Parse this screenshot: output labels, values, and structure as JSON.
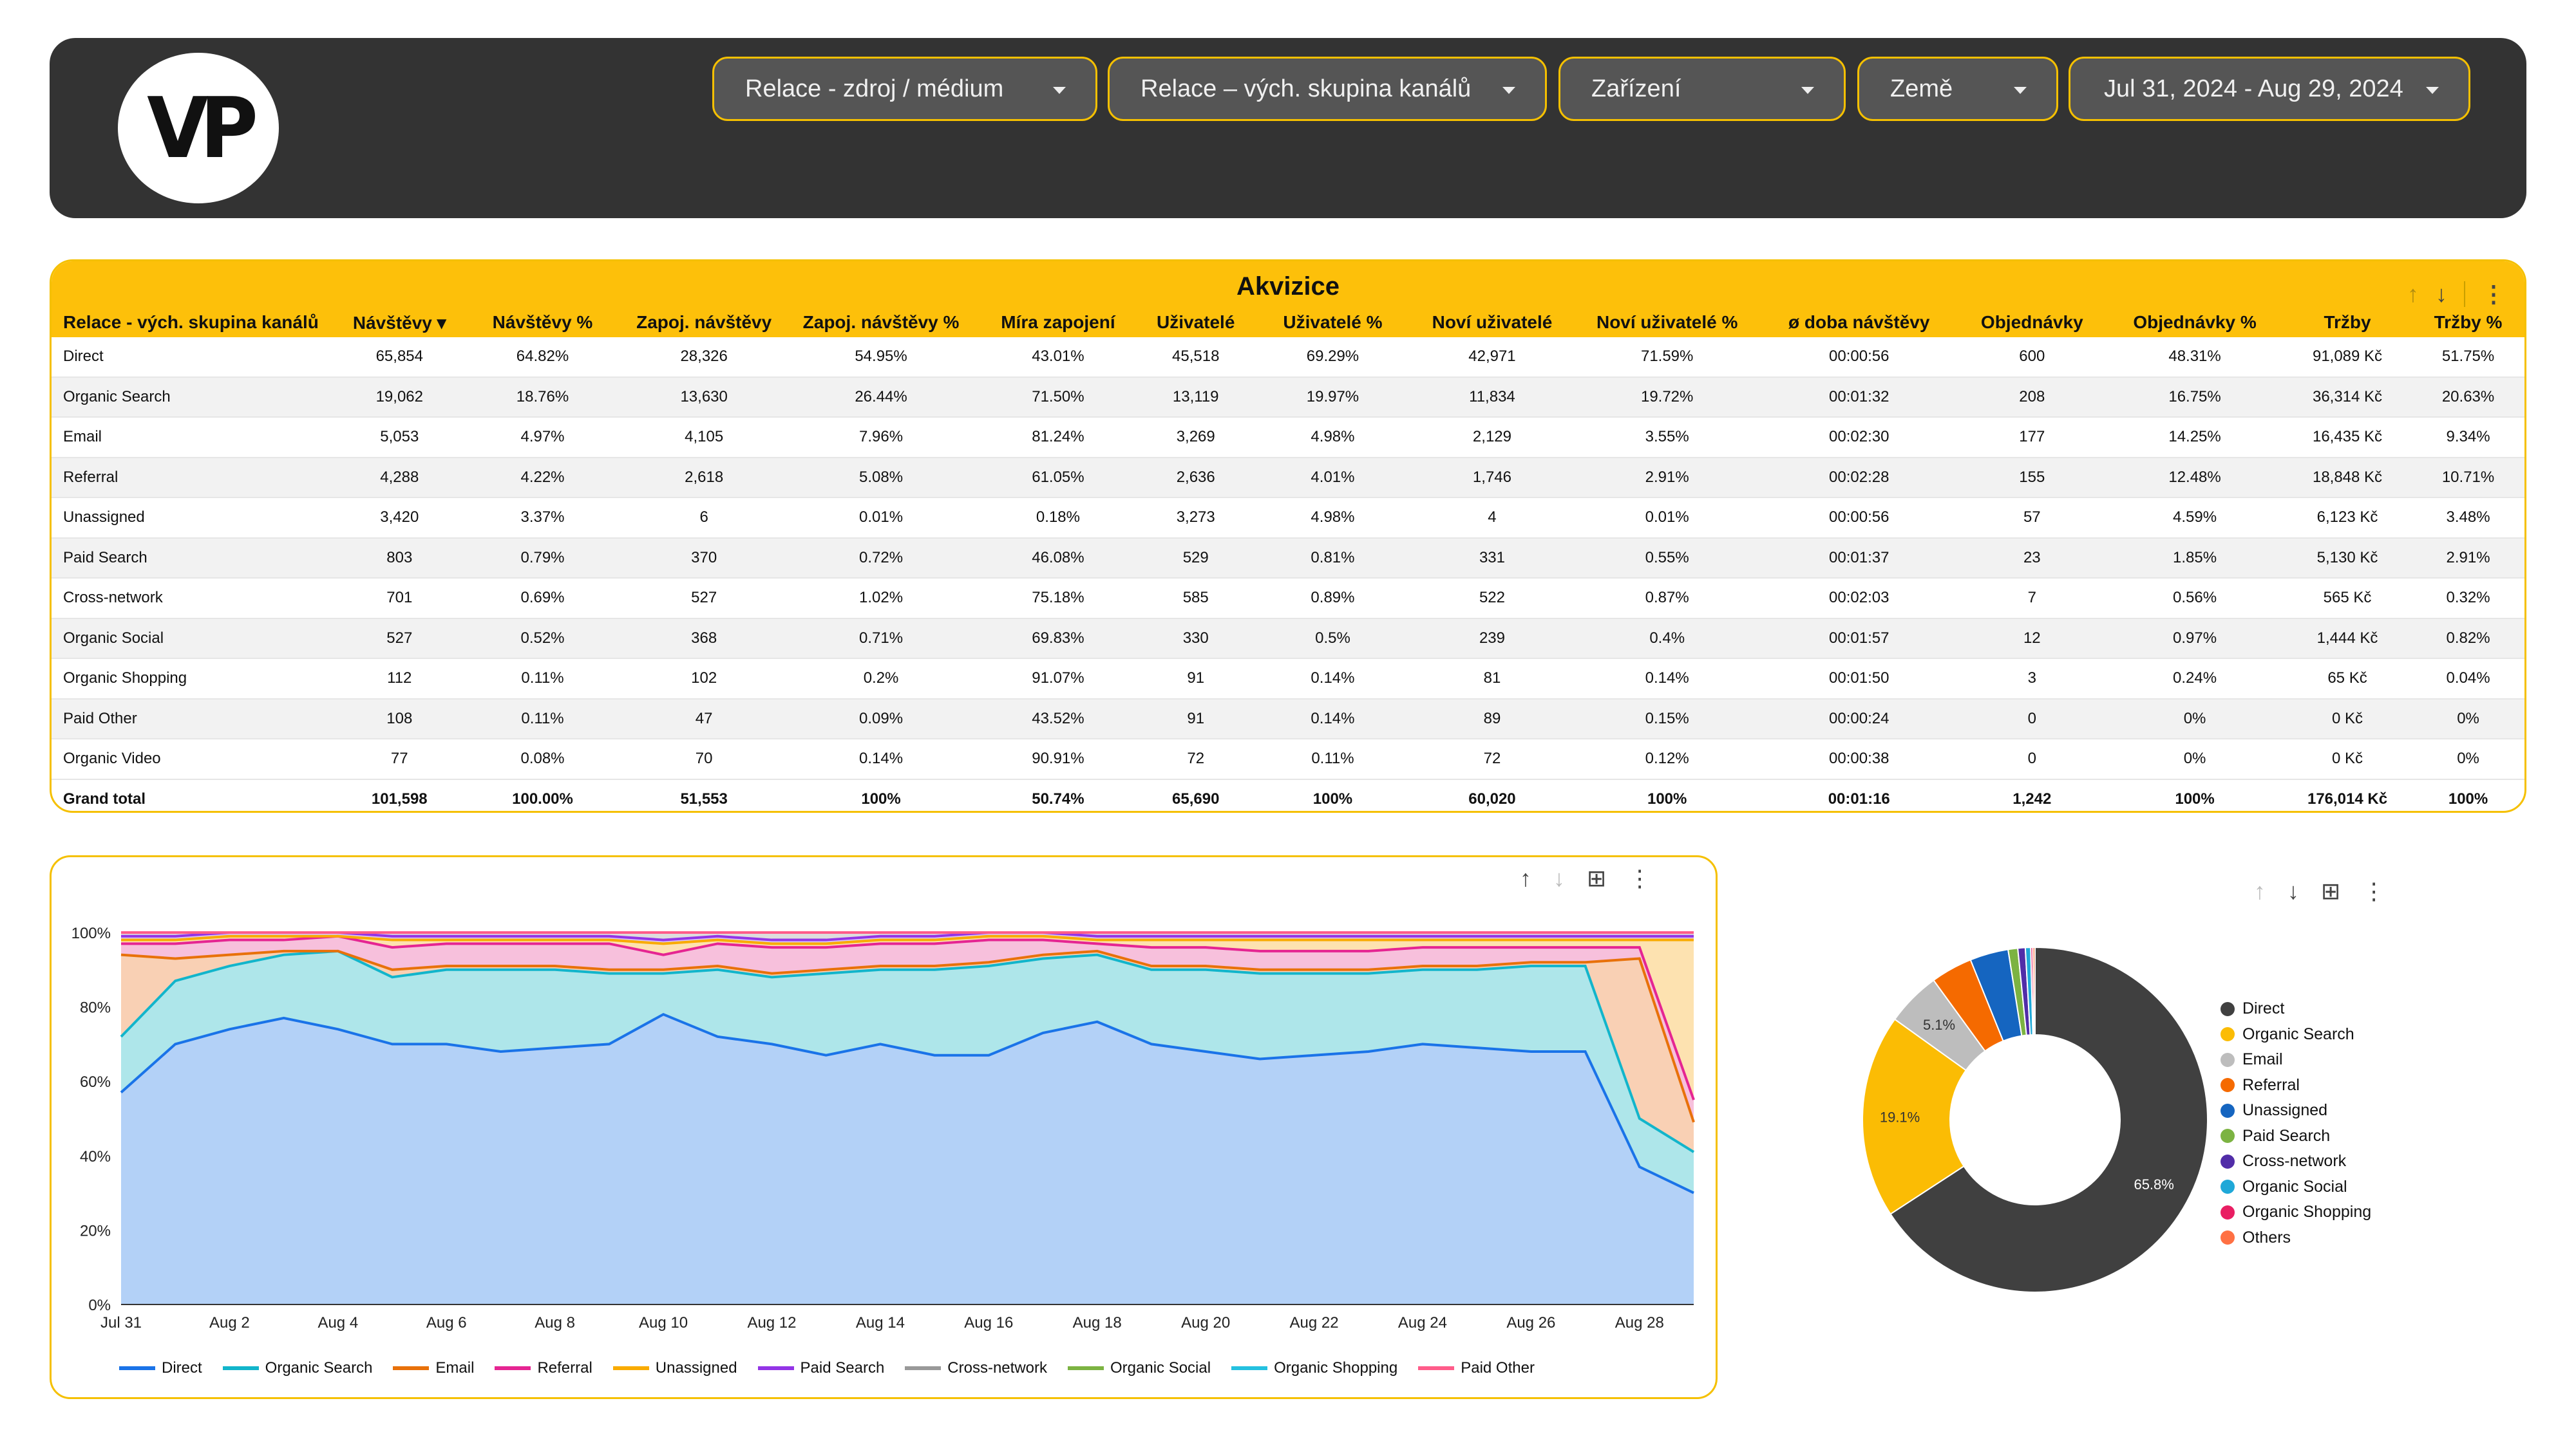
{
  "header": {
    "logo_text": "VP",
    "filters": [
      {
        "label": "Relace - zdroj / médium"
      },
      {
        "label": "Relace – vých. skupina kanálů"
      },
      {
        "label": "Zařízení"
      },
      {
        "label": "Země"
      },
      {
        "label": "Jul 31, 2024 - Aug 29, 2024"
      }
    ]
  },
  "table": {
    "title": "Akvizice",
    "columns": [
      "Relace - vých. skupina kanálů",
      "Návštěvy ▾",
      "Návštěvy %",
      "Zapoj. návštěvy",
      "Zapoj. návštěvy %",
      "Míra zapojení",
      "Uživatelé",
      "Uživatelé %",
      "Noví uživatelé",
      "Noví uživatelé %",
      "ø doba návštěvy",
      "Objednávky",
      "Objednávky %",
      "Tržby",
      "Tržby %"
    ],
    "rows": [
      [
        "Direct",
        "65,854",
        "64.82%",
        "28,326",
        "54.95%",
        "43.01%",
        "45,518",
        "69.29%",
        "42,971",
        "71.59%",
        "00:00:56",
        "600",
        "48.31%",
        "91,089 Kč",
        "51.75%"
      ],
      [
        "Organic Search",
        "19,062",
        "18.76%",
        "13,630",
        "26.44%",
        "71.50%",
        "13,119",
        "19.97%",
        "11,834",
        "19.72%",
        "00:01:32",
        "208",
        "16.75%",
        "36,314 Kč",
        "20.63%"
      ],
      [
        "Email",
        "5,053",
        "4.97%",
        "4,105",
        "7.96%",
        "81.24%",
        "3,269",
        "4.98%",
        "2,129",
        "3.55%",
        "00:02:30",
        "177",
        "14.25%",
        "16,435 Kč",
        "9.34%"
      ],
      [
        "Referral",
        "4,288",
        "4.22%",
        "2,618",
        "5.08%",
        "61.05%",
        "2,636",
        "4.01%",
        "1,746",
        "2.91%",
        "00:02:28",
        "155",
        "12.48%",
        "18,848 Kč",
        "10.71%"
      ],
      [
        "Unassigned",
        "3,420",
        "3.37%",
        "6",
        "0.01%",
        "0.18%",
        "3,273",
        "4.98%",
        "4",
        "0.01%",
        "00:00:56",
        "57",
        "4.59%",
        "6,123 Kč",
        "3.48%"
      ],
      [
        "Paid Search",
        "803",
        "0.79%",
        "370",
        "0.72%",
        "46.08%",
        "529",
        "0.81%",
        "331",
        "0.55%",
        "00:01:37",
        "23",
        "1.85%",
        "5,130 Kč",
        "2.91%"
      ],
      [
        "Cross-network",
        "701",
        "0.69%",
        "527",
        "1.02%",
        "75.18%",
        "585",
        "0.89%",
        "522",
        "0.87%",
        "00:02:03",
        "7",
        "0.56%",
        "565 Kč",
        "0.32%"
      ],
      [
        "Organic Social",
        "527",
        "0.52%",
        "368",
        "0.71%",
        "69.83%",
        "330",
        "0.5%",
        "239",
        "0.4%",
        "00:01:57",
        "12",
        "0.97%",
        "1,444 Kč",
        "0.82%"
      ],
      [
        "Organic Shopping",
        "112",
        "0.11%",
        "102",
        "0.2%",
        "91.07%",
        "91",
        "0.14%",
        "81",
        "0.14%",
        "00:01:50",
        "3",
        "0.24%",
        "65 Kč",
        "0.04%"
      ],
      [
        "Paid Other",
        "108",
        "0.11%",
        "47",
        "0.09%",
        "43.52%",
        "91",
        "0.14%",
        "89",
        "0.15%",
        "00:00:24",
        "0",
        "0%",
        "0 Kč",
        "0%"
      ],
      [
        "Organic Video",
        "77",
        "0.08%",
        "70",
        "0.14%",
        "90.91%",
        "72",
        "0.11%",
        "72",
        "0.12%",
        "00:00:38",
        "0",
        "0%",
        "0 Kč",
        "0%"
      ]
    ],
    "total": [
      "Grand total",
      "101,598",
      "100.00%",
      "51,553",
      "100%",
      "50.74%",
      "65,690",
      "100%",
      "60,020",
      "100%",
      "00:01:16",
      "1,242",
      "100%",
      "176,014 Kč",
      "100%"
    ]
  },
  "chart_data": [
    {
      "type": "area",
      "stacked": "percent",
      "x": [
        "Jul 31",
        "Aug 1",
        "Aug 2",
        "Aug 3",
        "Aug 4",
        "Aug 5",
        "Aug 6",
        "Aug 7",
        "Aug 8",
        "Aug 9",
        "Aug 10",
        "Aug 11",
        "Aug 12",
        "Aug 13",
        "Aug 14",
        "Aug 15",
        "Aug 16",
        "Aug 17",
        "Aug 18",
        "Aug 19",
        "Aug 20",
        "Aug 21",
        "Aug 22",
        "Aug 23",
        "Aug 24",
        "Aug 25",
        "Aug 26",
        "Aug 27",
        "Aug 28",
        "Aug 29"
      ],
      "x_tick_labels": [
        "Jul 31",
        "Aug 2",
        "Aug 4",
        "Aug 6",
        "Aug 8",
        "Aug 10",
        "Aug 12",
        "Aug 14",
        "Aug 16",
        "Aug 18",
        "Aug 20",
        "Aug 22",
        "Aug 24",
        "Aug 26",
        "Aug 28"
      ],
      "y_tick_labels": [
        "0%",
        "20%",
        "40%",
        "60%",
        "80%",
        "100%"
      ],
      "ylim": [
        0,
        100
      ],
      "grid": true,
      "legend": "bottom",
      "series": [
        {
          "name": "Direct",
          "color": "#1a73e8",
          "fill": "#b3d1f7",
          "values": [
            57,
            70,
            74,
            77,
            74,
            70,
            70,
            68,
            69,
            70,
            78,
            72,
            70,
            67,
            70,
            67,
            67,
            73,
            76,
            70,
            68,
            66,
            67,
            68,
            70,
            69,
            68,
            68,
            37,
            30
          ]
        },
        {
          "name": "Organic Search",
          "color": "#12b5cb",
          "fill": "#aee6ea",
          "values": [
            15,
            17,
            17,
            17,
            21,
            18,
            20,
            22,
            21,
            19,
            11,
            18,
            18,
            22,
            20,
            23,
            24,
            20,
            18,
            20,
            22,
            23,
            22,
            21,
            20,
            21,
            23,
            23,
            13,
            11
          ]
        },
        {
          "name": "Email",
          "color": "#e8710a",
          "fill": "#f9d0b4",
          "values": [
            22,
            6,
            3,
            1,
            0,
            2,
            1,
            1,
            1,
            1,
            1,
            1,
            1,
            1,
            1,
            1,
            1,
            1,
            1,
            1,
            1,
            1,
            1,
            1,
            1,
            1,
            1,
            1,
            43,
            8
          ]
        },
        {
          "name": "Referral",
          "color": "#e52592",
          "fill": "#f7c0dc",
          "values": [
            3,
            4,
            4,
            3,
            4,
            6,
            6,
            6,
            6,
            7,
            4,
            6,
            7,
            6,
            6,
            6,
            6,
            4,
            2,
            5,
            5,
            5,
            5,
            5,
            5,
            5,
            4,
            4,
            3,
            6
          ]
        },
        {
          "name": "Unassigned",
          "color": "#f9ab00",
          "fill": "#fde2b0",
          "values": [
            1,
            1,
            1,
            1,
            0,
            2,
            1,
            1,
            1,
            1,
            3,
            1,
            1,
            1,
            1,
            1,
            1,
            1,
            1,
            2,
            2,
            3,
            3,
            3,
            2,
            2,
            2,
            2,
            2,
            43
          ]
        },
        {
          "name": "Paid Search",
          "color": "#9334e6",
          "fill": "#dac4f4",
          "values": [
            1,
            1,
            1,
            1,
            1,
            1,
            1,
            1,
            1,
            1,
            1,
            1,
            1,
            1,
            1,
            1,
            1,
            1,
            1,
            1,
            1,
            1,
            1,
            1,
            1,
            1,
            1,
            1,
            1,
            1
          ]
        },
        {
          "name": "Cross-network",
          "color": "#999999",
          "fill": "#dddddd",
          "values": [
            1,
            1,
            0,
            0,
            0,
            1,
            1,
            1,
            1,
            1,
            2,
            1,
            2,
            2,
            1,
            1,
            0,
            1,
            1,
            1,
            1,
            1,
            1,
            1,
            1,
            1,
            1,
            1,
            1,
            1
          ]
        },
        {
          "name": "Organic Social",
          "color": "#7cb342",
          "fill": "#d6e9c1",
          "values": [
            0,
            0,
            0,
            0,
            0,
            0,
            0,
            0,
            0,
            0,
            0,
            0,
            0,
            0,
            0,
            0,
            0,
            0,
            0,
            0,
            0,
            0,
            0,
            0,
            0,
            0,
            0,
            0,
            0,
            0
          ]
        },
        {
          "name": "Organic Shopping",
          "color": "#24c1e0",
          "fill": "#c1ecf5",
          "values": [
            0,
            0,
            0,
            0,
            0,
            0,
            0,
            0,
            0,
            0,
            0,
            0,
            0,
            0,
            0,
            0,
            0,
            0,
            0,
            0,
            0,
            0,
            0,
            0,
            0,
            0,
            0,
            0,
            0,
            0
          ]
        },
        {
          "name": "Paid Other",
          "color": "#ff5c8a",
          "fill": "#ffd0dc",
          "values": [
            0,
            0,
            0,
            0,
            0,
            0,
            0,
            0,
            0,
            0,
            0,
            0,
            0,
            0,
            0,
            0,
            0,
            0,
            0,
            0,
            0,
            0,
            0,
            0,
            0,
            0,
            0,
            0,
            0,
            0
          ]
        }
      ]
    },
    {
      "type": "pie",
      "donut": true,
      "legend": "right",
      "slices": [
        {
          "name": "Direct",
          "value": 65.8,
          "color": "#404040",
          "label": "65.8%"
        },
        {
          "name": "Organic Search",
          "value": 19.1,
          "color": "#fbbc04",
          "label": "19.1%"
        },
        {
          "name": "Email",
          "value": 5.1,
          "color": "#bdbdbd",
          "label": "5.1%"
        },
        {
          "name": "Referral",
          "value": 3.9,
          "color": "#f56a00",
          "label": ""
        },
        {
          "name": "Unassigned",
          "value": 3.6,
          "color": "#1565c0",
          "label": ""
        },
        {
          "name": "Paid Search",
          "value": 0.9,
          "color": "#7cb342",
          "label": ""
        },
        {
          "name": "Cross-network",
          "value": 0.7,
          "color": "#512da8",
          "label": ""
        },
        {
          "name": "Organic Social",
          "value": 0.5,
          "color": "#1fa8d8",
          "label": ""
        },
        {
          "name": "Organic Shopping",
          "value": 0.2,
          "color": "#e91e63",
          "label": ""
        },
        {
          "name": "Others",
          "value": 0.2,
          "color": "#ff7043",
          "label": ""
        }
      ]
    }
  ]
}
